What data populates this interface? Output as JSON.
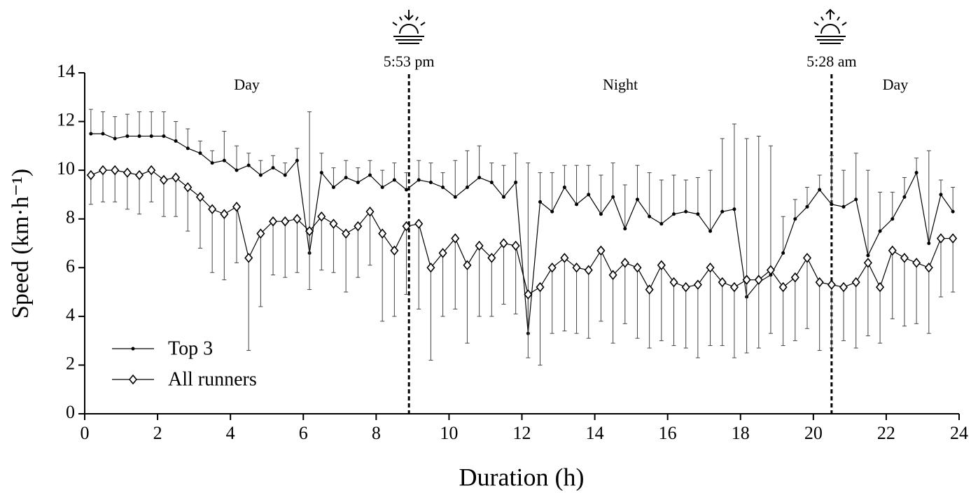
{
  "chart_data": {
    "type": "line",
    "xlabel": "Duration (h)",
    "ylabel": "Speed (km·h⁻¹)",
    "xlim": [
      0,
      24
    ],
    "xticks": [
      0,
      2,
      4,
      6,
      8,
      10,
      12,
      14,
      16,
      18,
      20,
      22,
      24
    ],
    "ylim": [
      0,
      14
    ],
    "yticks": [
      0,
      2,
      4,
      6,
      8,
      10,
      12,
      14
    ],
    "legend": "lower left",
    "vlines": [
      {
        "x": 8.9,
        "label": "5:53 pm"
      },
      {
        "x": 20.5,
        "label": "5:28 am"
      }
    ],
    "regions": [
      "Day",
      "Night",
      "Day"
    ],
    "x": [
      0.17,
      0.5,
      0.83,
      1.17,
      1.5,
      1.83,
      2.17,
      2.5,
      2.83,
      3.17,
      3.5,
      3.83,
      4.17,
      4.5,
      4.83,
      5.17,
      5.5,
      5.83,
      6.17,
      6.5,
      6.83,
      7.17,
      7.5,
      7.83,
      8.17,
      8.5,
      8.83,
      9.17,
      9.5,
      9.83,
      10.17,
      10.5,
      10.83,
      11.17,
      11.5,
      11.83,
      12.17,
      12.5,
      12.83,
      13.17,
      13.5,
      13.83,
      14.17,
      14.5,
      14.83,
      15.17,
      15.5,
      15.83,
      16.17,
      16.5,
      16.83,
      17.17,
      17.5,
      17.83,
      18.17,
      18.5,
      18.83,
      19.17,
      19.5,
      19.83,
      20.17,
      20.5,
      20.83,
      21.17,
      21.5,
      21.83,
      22.17,
      22.5,
      22.83,
      23.17,
      23.5,
      23.83
    ],
    "series": [
      {
        "name": "Top 3",
        "color": "#000000",
        "marker": "circle",
        "error_direction": "up",
        "values": [
          11.5,
          11.5,
          11.3,
          11.4,
          11.4,
          11.4,
          11.4,
          11.2,
          10.9,
          10.7,
          10.3,
          10.4,
          10.0,
          10.2,
          9.8,
          10.1,
          9.8,
          10.4,
          6.6,
          9.9,
          9.3,
          9.7,
          9.5,
          9.8,
          9.3,
          9.6,
          9.2,
          9.6,
          9.5,
          9.3,
          8.9,
          9.3,
          9.7,
          9.5,
          8.9,
          9.5,
          3.3,
          8.7,
          8.3,
          9.3,
          8.6,
          9.0,
          8.2,
          8.9,
          7.6,
          8.8,
          8.1,
          7.8,
          8.2,
          8.3,
          8.2,
          7.5,
          8.3,
          8.4,
          4.8,
          5.4,
          5.7,
          6.6,
          8.0,
          8.5,
          9.2,
          8.6,
          8.5,
          8.8,
          6.5,
          7.5,
          8.0,
          8.9,
          9.9,
          7.0,
          9.0,
          8.3
        ],
        "errors": [
          1.0,
          0.9,
          0.9,
          0.9,
          1.0,
          1.0,
          1.0,
          0.8,
          0.8,
          0.5,
          0.5,
          1.2,
          1.0,
          0.5,
          0.6,
          0.5,
          0.5,
          0.5,
          5.8,
          0.8,
          0.8,
          0.7,
          0.6,
          0.6,
          0.7,
          0.7,
          0.7,
          0.8,
          0.8,
          0.6,
          1.5,
          1.5,
          1.3,
          0.8,
          1.3,
          1.2,
          7.0,
          1.2,
          1.6,
          0.9,
          1.6,
          1.2,
          1.6,
          1.4,
          1.8,
          1.4,
          1.8,
          1.8,
          1.6,
          1.3,
          1.5,
          2.5,
          3.0,
          3.5,
          6.5,
          6.0,
          5.3,
          1.5,
          0.8,
          0.8,
          0.6,
          2.0,
          1.5,
          1.9,
          3.5,
          1.6,
          1.1,
          0.8,
          0.6,
          3.8,
          0.6,
          1.0
        ]
      },
      {
        "name": "All runners",
        "color": "#000000",
        "marker": "diamond",
        "error_direction": "down",
        "values": [
          9.8,
          10.0,
          10.0,
          9.9,
          9.8,
          10.0,
          9.6,
          9.7,
          9.3,
          8.9,
          8.4,
          8.2,
          8.5,
          6.4,
          7.4,
          7.9,
          7.9,
          8.0,
          7.5,
          8.1,
          7.8,
          7.4,
          7.7,
          8.3,
          7.4,
          6.7,
          7.7,
          7.8,
          6.0,
          6.6,
          7.2,
          6.1,
          6.9,
          6.4,
          7.0,
          6.9,
          4.9,
          5.2,
          6.0,
          6.4,
          6.0,
          5.9,
          6.7,
          5.7,
          6.2,
          6.0,
          5.1,
          6.1,
          5.4,
          5.2,
          5.3,
          6.0,
          5.4,
          5.2,
          5.5,
          5.5,
          5.9,
          5.2,
          5.6,
          6.4,
          5.4,
          5.3,
          5.2,
          5.4,
          6.2,
          5.2,
          6.7,
          6.4,
          6.2,
          6.0,
          7.2,
          7.2
        ],
        "errors": [
          1.2,
          1.3,
          1.3,
          1.5,
          1.6,
          1.3,
          1.5,
          1.6,
          1.8,
          2.1,
          2.6,
          2.7,
          2.3,
          3.8,
          3.0,
          2.2,
          2.3,
          2.2,
          2.4,
          2.2,
          2.0,
          2.4,
          2.1,
          2.2,
          3.6,
          2.7,
          2.8,
          3.5,
          3.8,
          2.6,
          2.9,
          3.2,
          2.9,
          2.4,
          2.5,
          2.8,
          2.6,
          3.2,
          2.7,
          3.0,
          2.7,
          2.8,
          2.9,
          2.8,
          2.5,
          2.9,
          2.4,
          3.1,
          2.6,
          2.5,
          3.0,
          3.2,
          2.6,
          2.9,
          3.0,
          2.8,
          2.6,
          2.4,
          2.6,
          2.9,
          2.8,
          2.6,
          2.2,
          2.7,
          3.0,
          2.3,
          2.8,
          2.8,
          2.5,
          2.7,
          2.4,
          2.2
        ]
      }
    ]
  }
}
